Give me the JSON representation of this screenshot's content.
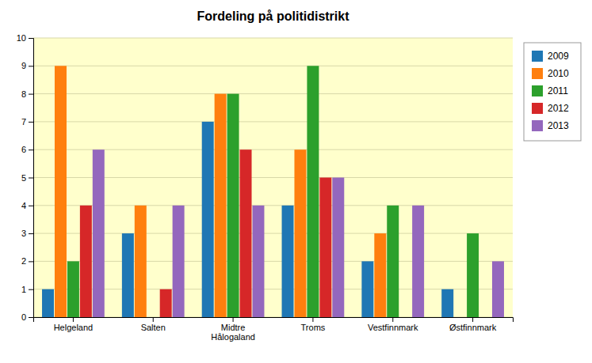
{
  "chart_data": {
    "type": "bar",
    "title": "Fordeling på politidistrikt",
    "categories": [
      "Helgeland",
      "Salten",
      "Midtre\nHålogaland",
      "Troms",
      "Vestfinnmark",
      "Østfinnmark"
    ],
    "series": [
      {
        "name": "2009",
        "values": [
          1,
          3,
          7,
          4,
          2,
          1
        ]
      },
      {
        "name": "2010",
        "values": [
          9,
          4,
          8,
          6,
          3,
          0
        ]
      },
      {
        "name": "2011",
        "values": [
          2,
          0,
          8,
          9,
          4,
          3
        ]
      },
      {
        "name": "2012",
        "values": [
          4,
          1,
          6,
          5,
          0,
          0
        ]
      },
      {
        "name": "2013",
        "values": [
          6,
          4,
          4,
          5,
          4,
          2
        ]
      }
    ],
    "ylim": [
      0,
      10
    ],
    "yticks": [
      0,
      1,
      2,
      3,
      4,
      5,
      6,
      7,
      8,
      9,
      10
    ],
    "grid": true,
    "legend": "right"
  }
}
